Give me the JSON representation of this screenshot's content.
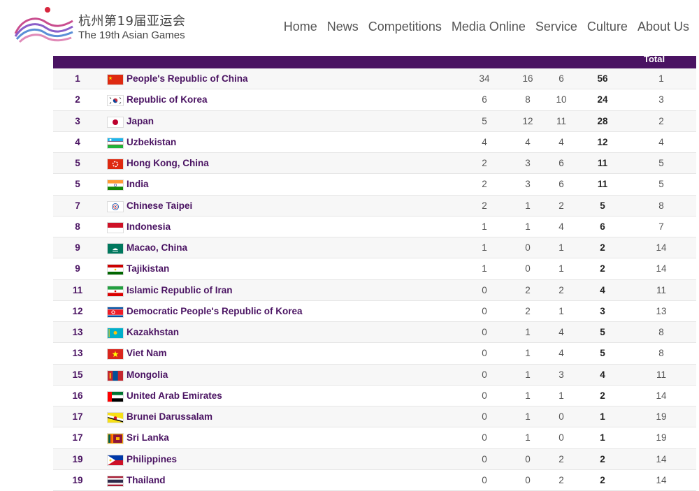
{
  "header": {
    "logo_cn": "杭州第19届亚运会",
    "logo_en": "The 19th Asian Games",
    "nav": [
      "Home",
      "News",
      "Competitions",
      "Media Online",
      "Service",
      "Culture",
      "About Us"
    ]
  },
  "table": {
    "total_header": "Total",
    "rows": [
      {
        "rank": "1",
        "flag": "china",
        "name": "People's Republic of China",
        "gold": "34",
        "silver": "16",
        "bronze": "6",
        "total": "56",
        "rank_by_total": "1"
      },
      {
        "rank": "2",
        "flag": "korea",
        "name": "Republic of Korea",
        "gold": "6",
        "silver": "8",
        "bronze": "10",
        "total": "24",
        "rank_by_total": "3"
      },
      {
        "rank": "3",
        "flag": "japan",
        "name": "Japan",
        "gold": "5",
        "silver": "12",
        "bronze": "11",
        "total": "28",
        "rank_by_total": "2"
      },
      {
        "rank": "4",
        "flag": "uzbekistan",
        "name": "Uzbekistan",
        "gold": "4",
        "silver": "4",
        "bronze": "4",
        "total": "12",
        "rank_by_total": "4"
      },
      {
        "rank": "5",
        "flag": "hongkong",
        "name": "Hong Kong, China",
        "gold": "2",
        "silver": "3",
        "bronze": "6",
        "total": "11",
        "rank_by_total": "5"
      },
      {
        "rank": "5",
        "flag": "india",
        "name": "India",
        "gold": "2",
        "silver": "3",
        "bronze": "6",
        "total": "11",
        "rank_by_total": "5"
      },
      {
        "rank": "7",
        "flag": "chinesetaipei",
        "name": "Chinese Taipei",
        "gold": "2",
        "silver": "1",
        "bronze": "2",
        "total": "5",
        "rank_by_total": "8"
      },
      {
        "rank": "8",
        "flag": "indonesia",
        "name": "Indonesia",
        "gold": "1",
        "silver": "1",
        "bronze": "4",
        "total": "6",
        "rank_by_total": "7"
      },
      {
        "rank": "9",
        "flag": "macao",
        "name": "Macao, China",
        "gold": "1",
        "silver": "0",
        "bronze": "1",
        "total": "2",
        "rank_by_total": "14"
      },
      {
        "rank": "9",
        "flag": "tajikistan",
        "name": "Tajikistan",
        "gold": "1",
        "silver": "0",
        "bronze": "1",
        "total": "2",
        "rank_by_total": "14"
      },
      {
        "rank": "11",
        "flag": "iran",
        "name": "Islamic Republic of Iran",
        "gold": "0",
        "silver": "2",
        "bronze": "2",
        "total": "4",
        "rank_by_total": "11"
      },
      {
        "rank": "12",
        "flag": "dprk",
        "name": "Democratic People's Republic of Korea",
        "gold": "0",
        "silver": "2",
        "bronze": "1",
        "total": "3",
        "rank_by_total": "13"
      },
      {
        "rank": "13",
        "flag": "kazakhstan",
        "name": "Kazakhstan",
        "gold": "0",
        "silver": "1",
        "bronze": "4",
        "total": "5",
        "rank_by_total": "8"
      },
      {
        "rank": "13",
        "flag": "vietnam",
        "name": "Viet Nam",
        "gold": "0",
        "silver": "1",
        "bronze": "4",
        "total": "5",
        "rank_by_total": "8"
      },
      {
        "rank": "15",
        "flag": "mongolia",
        "name": "Mongolia",
        "gold": "0",
        "silver": "1",
        "bronze": "3",
        "total": "4",
        "rank_by_total": "11"
      },
      {
        "rank": "16",
        "flag": "uae",
        "name": "United Arab Emirates",
        "gold": "0",
        "silver": "1",
        "bronze": "1",
        "total": "2",
        "rank_by_total": "14"
      },
      {
        "rank": "17",
        "flag": "brunei",
        "name": "Brunei Darussalam",
        "gold": "0",
        "silver": "1",
        "bronze": "0",
        "total": "1",
        "rank_by_total": "19"
      },
      {
        "rank": "17",
        "flag": "srilanka",
        "name": "Sri Lanka",
        "gold": "0",
        "silver": "1",
        "bronze": "0",
        "total": "1",
        "rank_by_total": "19"
      },
      {
        "rank": "19",
        "flag": "philippines",
        "name": "Philippines",
        "gold": "0",
        "silver": "0",
        "bronze": "2",
        "total": "2",
        "rank_by_total": "14"
      },
      {
        "rank": "19",
        "flag": "thailand",
        "name": "Thailand",
        "gold": "0",
        "silver": "0",
        "bronze": "2",
        "total": "2",
        "rank_by_total": "14"
      }
    ]
  },
  "colors": {
    "header_bar": "#4a1362",
    "country_text": "#4a1362",
    "row_alt": "#f7f7f7"
  }
}
